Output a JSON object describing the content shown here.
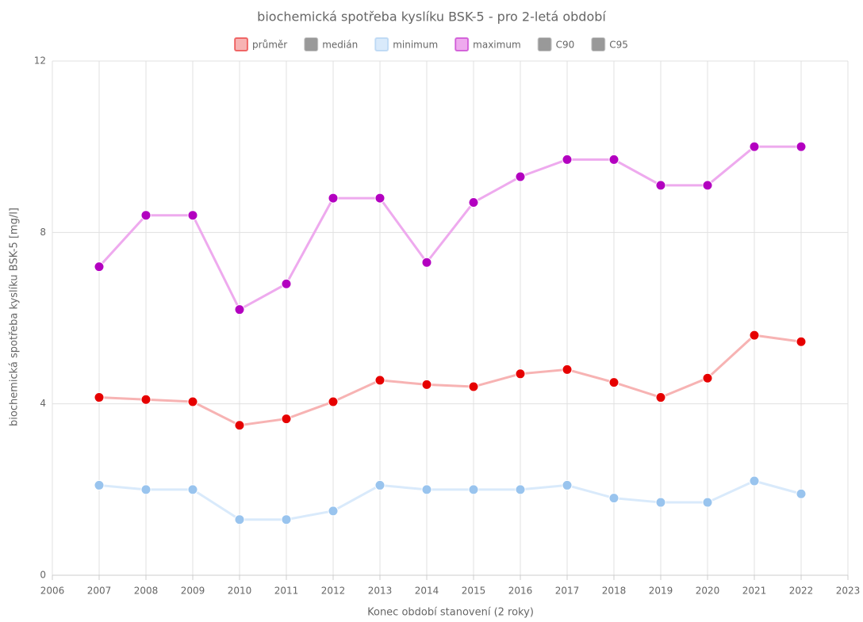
{
  "chart_data": {
    "type": "line",
    "title": "biochemická spotřeba kyslíku BSK-5 - pro 2-letá období",
    "x_label": "Konec období stanovení (2 roky)",
    "y_label": "biochemická spotřeba kyslíku BSK-5 [mg/l]",
    "x": [
      2007,
      2008,
      2009,
      2010,
      2011,
      2012,
      2013,
      2014,
      2015,
      2016,
      2017,
      2018,
      2019,
      2020,
      2021,
      2022
    ],
    "series": [
      {
        "name": "průměr",
        "color": "#e60000",
        "line_color": "#f7b3b3",
        "visible": true,
        "values": [
          4.15,
          4.1,
          4.05,
          3.5,
          3.65,
          4.05,
          4.55,
          4.45,
          4.4,
          4.7,
          4.8,
          4.5,
          4.15,
          4.6,
          5.6,
          5.45
        ]
      },
      {
        "name": "medián",
        "color": "#999999",
        "line_color": "#999999",
        "visible": false,
        "values": [
          null,
          null,
          null,
          null,
          null,
          null,
          null,
          null,
          null,
          null,
          null,
          null,
          null,
          null,
          null,
          null
        ]
      },
      {
        "name": "minimum",
        "color": "#99c4ee",
        "line_color": "#d9eafb",
        "visible": true,
        "values": [
          2.1,
          2.0,
          2.0,
          1.3,
          1.3,
          1.5,
          2.1,
          2.0,
          2.0,
          2.0,
          2.1,
          1.8,
          1.7,
          1.7,
          2.2,
          1.9
        ]
      },
      {
        "name": "maximum",
        "color": "#b300c0",
        "line_color": "#eeaaee",
        "visible": true,
        "values": [
          7.2,
          8.4,
          8.4,
          6.2,
          6.8,
          8.8,
          8.8,
          7.3,
          8.7,
          9.3,
          9.7,
          9.7,
          9.1,
          9.1,
          10.0,
          10.0
        ]
      },
      {
        "name": "C90",
        "color": "#999999",
        "line_color": "#999999",
        "visible": false,
        "values": [
          null,
          null,
          null,
          null,
          null,
          null,
          null,
          null,
          null,
          null,
          null,
          null,
          null,
          null,
          null,
          null
        ]
      },
      {
        "name": "C95",
        "color": "#999999",
        "line_color": "#999999",
        "visible": false,
        "values": [
          null,
          null,
          null,
          null,
          null,
          null,
          null,
          null,
          null,
          null,
          null,
          null,
          null,
          null,
          null,
          null
        ]
      }
    ],
    "xlim": [
      2006,
      2023
    ],
    "xticks": [
      2006,
      2007,
      2008,
      2009,
      2010,
      2011,
      2012,
      2013,
      2014,
      2015,
      2016,
      2017,
      2018,
      2019,
      2020,
      2021,
      2022,
      2023
    ],
    "ylim": [
      0,
      12
    ],
    "yticks": [
      0,
      4,
      8,
      12
    ],
    "grid": true,
    "legend": "top"
  }
}
